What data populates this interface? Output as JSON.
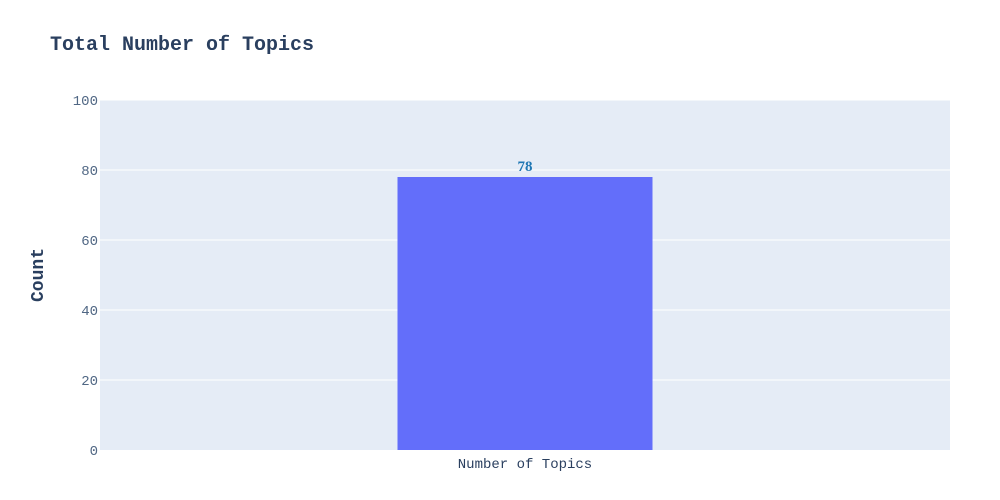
{
  "chart_data": {
    "type": "bar",
    "title": "Total Number of Topics",
    "xlabel": "",
    "ylabel": "Count",
    "categories": [
      "Number of Topics"
    ],
    "values": [
      78
    ],
    "data_labels": [
      "78"
    ],
    "ylim": [
      0,
      100
    ],
    "yticks": [
      0,
      20,
      40,
      60,
      80,
      100
    ],
    "ytick_labels": [
      "0",
      "20",
      "40",
      "60",
      "80",
      "100"
    ],
    "grid": true,
    "legend": "none"
  },
  "colors": {
    "bar": "#636efa",
    "plot_background": "#e5ecf6",
    "grid": "#ffffff",
    "data_label": "#1f77b4",
    "title": "#2a3f5f"
  }
}
